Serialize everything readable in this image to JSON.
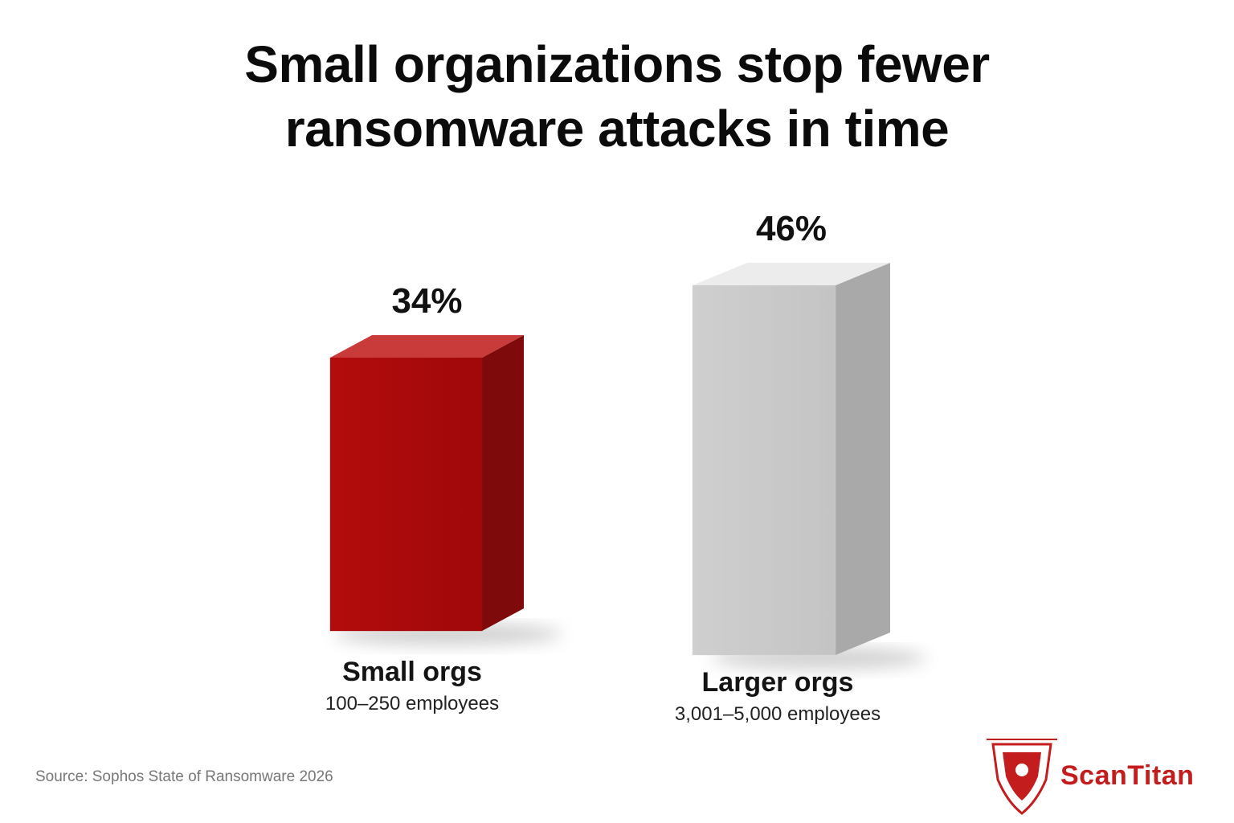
{
  "chart_data": {
    "type": "bar3d",
    "title": "Small organizations stop fewer ransomware attacks in time",
    "categories": [
      "Small orgs",
      "Larger orgs"
    ],
    "category_notes": [
      "100–250 employees",
      "3,001–5,000 employees"
    ],
    "values": [
      34,
      46
    ],
    "value_labels": [
      "34%",
      "46%"
    ],
    "colors": [
      "#b30c0c",
      "#cfcfcf"
    ],
    "source": "Source: Sophos State of Ransomware 2026",
    "brand": "ScanTitan"
  }
}
